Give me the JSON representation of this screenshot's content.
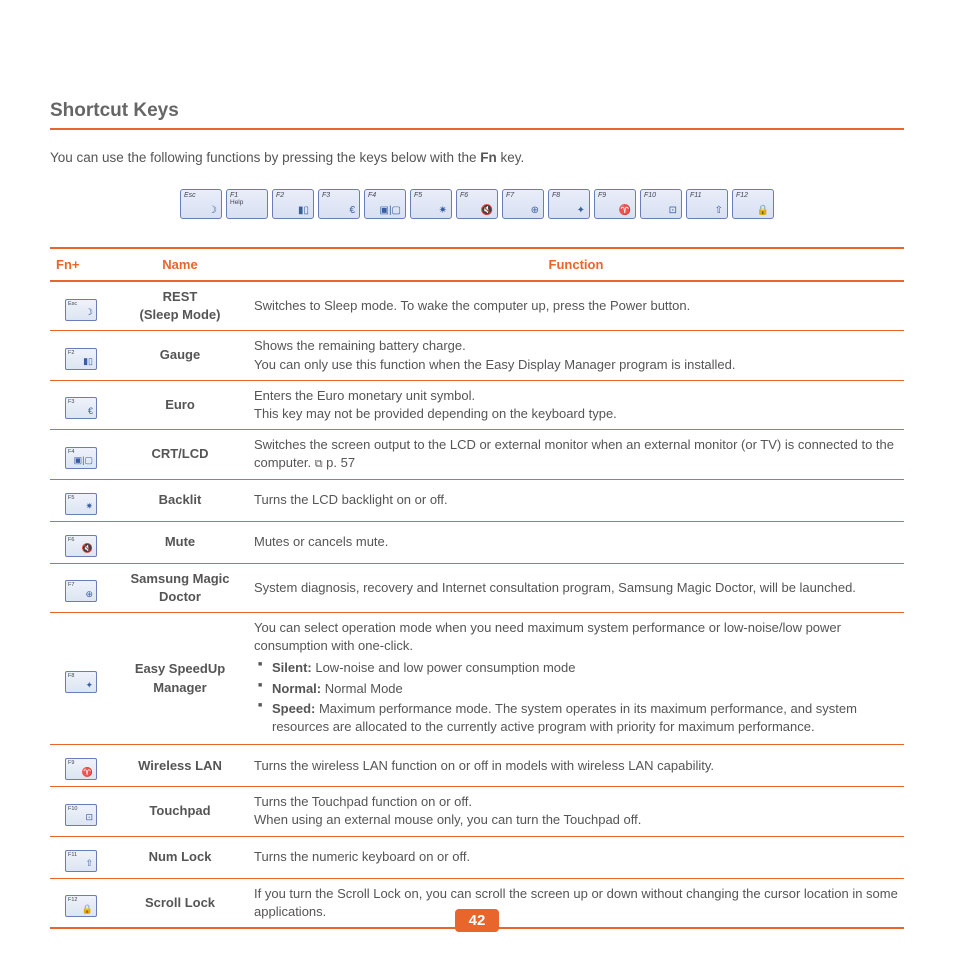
{
  "title": "Shortcut Keys",
  "intro_pre": "You can use the following functions by pressing the keys below with the ",
  "intro_fn": "Fn",
  "intro_post": " key.",
  "keys_top": [
    {
      "label": "Esc",
      "icon": "☽",
      "sub": ""
    },
    {
      "label": "F1",
      "icon": "",
      "sub": "Help"
    },
    {
      "label": "F2",
      "icon": "▮▯",
      "sub": ""
    },
    {
      "label": "F3",
      "icon": "€",
      "sub": ""
    },
    {
      "label": "F4",
      "icon": "▣|▢",
      "sub": ""
    },
    {
      "label": "F5",
      "icon": "✷",
      "sub": ""
    },
    {
      "label": "F6",
      "icon": "🔇",
      "sub": ""
    },
    {
      "label": "F7",
      "icon": "⊕",
      "sub": ""
    },
    {
      "label": "F8",
      "icon": "✦",
      "sub": ""
    },
    {
      "label": "F9",
      "icon": "♈",
      "sub": ""
    },
    {
      "label": "F10",
      "icon": "⊡",
      "sub": ""
    },
    {
      "label": "F11",
      "icon": "⇧",
      "sub": ""
    },
    {
      "label": "F12",
      "icon": "🔒",
      "sub": ""
    }
  ],
  "table": {
    "headers": {
      "fn": "Fn+",
      "name": "Name",
      "func": "Function"
    },
    "rows": [
      {
        "klabel": "Esc",
        "kicon": "☽",
        "name_html": "REST<br>(Sleep Mode)",
        "func_html": "Switches to Sleep mode. To wake the computer up, press the Power button."
      },
      {
        "klabel": "F2",
        "kicon": "▮▯",
        "name_html": "Gauge",
        "func_html": "Shows the remaining battery charge.<br>You can only use this function when the Easy Display Manager program is installed."
      },
      {
        "klabel": "F3",
        "kicon": "€",
        "name_html": "Euro",
        "func_html": "Enters the Euro monetary unit symbol.<br>This key may not be provided depending on the keyboard type."
      },
      {
        "klabel": "F4",
        "kicon": "▣|▢",
        "name_html": "CRT/LCD",
        "func_html": "Switches the screen output to the LCD or external monitor when an external monitor (or TV) is connected to the computer. <span class='pagelink'>⧉</span> p. 57"
      },
      {
        "klabel": "F5",
        "kicon": "✷",
        "name_html": "Backlit",
        "func_html": "Turns the LCD backlight on or off."
      },
      {
        "klabel": "F6",
        "kicon": "🔇",
        "name_html": "Mute",
        "func_html": "Mutes or cancels mute."
      },
      {
        "klabel": "F7",
        "kicon": "⊕",
        "name_html": "Samsung Magic Doctor",
        "func_html": "System diagnosis, recovery and Internet consultation program, Samsung Magic Doctor, will be launched."
      },
      {
        "klabel": "F8",
        "kicon": "✦",
        "name_html": "Easy SpeedUp Manager",
        "func_html": "You can select operation mode when you need maximum system performance or low-noise/low power consumption with one-click.<ul class='modes'><li><b>Silent:</b> Low-noise and low power consumption mode</li><li><b>Normal:</b> Normal Mode</li><li><b>Speed:</b> Maximum performance mode. The system operates in its maximum performance, and system resources are allocated to the currently active program with priority for maximum performance.</li></ul>"
      },
      {
        "klabel": "F9",
        "kicon": "♈",
        "name_html": "Wireless LAN",
        "func_html": "Turns the wireless LAN function on or off in models with wireless LAN capability."
      },
      {
        "klabel": "F10",
        "kicon": "⊡",
        "name_html": "Touchpad",
        "func_html": "Turns the Touchpad function on or off.<br>When using an external mouse only, you can turn the Touchpad off."
      },
      {
        "klabel": "F11",
        "kicon": "⇧",
        "name_html": "Num Lock",
        "func_html": "Turns the numeric keyboard on or off."
      },
      {
        "klabel": "F12",
        "kicon": "🔒",
        "name_html": "Scroll Lock",
        "func_html": "If you turn the Scroll Lock on, you can scroll the screen up or down without changing the cursor location in some applications."
      }
    ]
  },
  "page_number": "42"
}
